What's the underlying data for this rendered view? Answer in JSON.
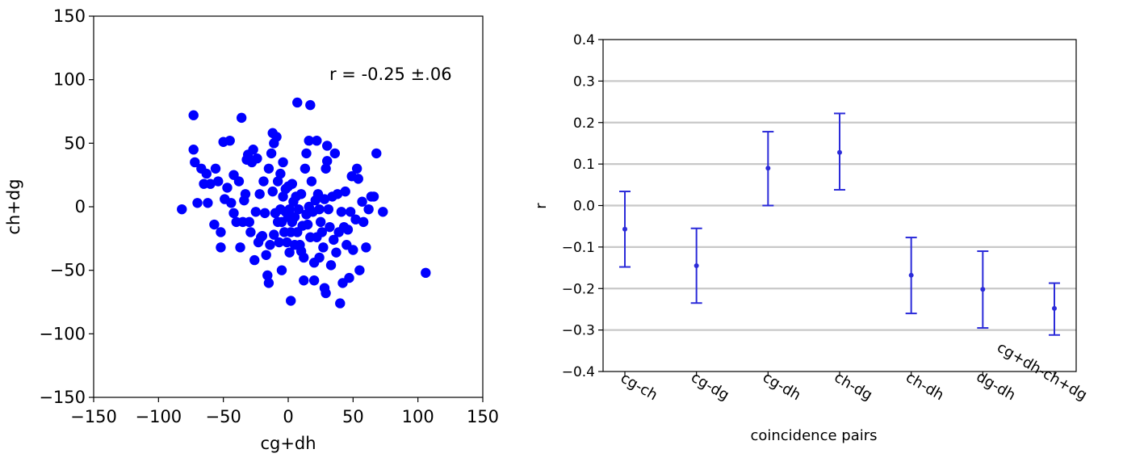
{
  "chart_data": [
    {
      "type": "scatter",
      "xlabel": "cg+dh",
      "ylabel": "ch+dg",
      "xlim": [
        -150,
        150
      ],
      "ylim": [
        -150,
        150
      ],
      "xticks": [
        -150,
        -100,
        -50,
        0,
        50,
        100,
        150
      ],
      "yticks": [
        -150,
        -100,
        -50,
        0,
        50,
        100,
        150
      ],
      "xtick_labels": [
        "−150",
        "−100",
        "−50",
        "0",
        "50",
        "100",
        "150"
      ],
      "ytick_labels": [
        "−150",
        "−100",
        "−50",
        "0",
        "50",
        "100",
        "150"
      ],
      "annotation": "r = -0.25 ±.06",
      "grid": false,
      "color": "#0000ff",
      "points": [
        [
          -82,
          -2
        ],
        [
          -73,
          72
        ],
        [
          -73,
          45
        ],
        [
          -72,
          35
        ],
        [
          -70,
          3
        ],
        [
          -67,
          30
        ],
        [
          -65,
          18
        ],
        [
          -63,
          26
        ],
        [
          -62,
          3
        ],
        [
          -60,
          18
        ],
        [
          -57,
          -14
        ],
        [
          -56,
          30
        ],
        [
          -54,
          20
        ],
        [
          -52,
          -32
        ],
        [
          -52,
          -20
        ],
        [
          -50,
          51
        ],
        [
          -49,
          6
        ],
        [
          -47,
          15
        ],
        [
          -45,
          52
        ],
        [
          -44,
          3
        ],
        [
          -42,
          -5
        ],
        [
          -42,
          25
        ],
        [
          -40,
          -12
        ],
        [
          -38,
          20
        ],
        [
          -37,
          -32
        ],
        [
          -36,
          70
        ],
        [
          -35,
          -12
        ],
        [
          -34,
          5
        ],
        [
          -33,
          10
        ],
        [
          -32,
          37
        ],
        [
          -31,
          41
        ],
        [
          -30,
          -12
        ],
        [
          -29,
          -20
        ],
        [
          -28,
          35
        ],
        [
          -27,
          45
        ],
        [
          -26,
          -42
        ],
        [
          -25,
          -4
        ],
        [
          -24,
          38
        ],
        [
          -23,
          -28
        ],
        [
          -22,
          10
        ],
        [
          -21,
          -24
        ],
        [
          -20,
          -23
        ],
        [
          -19,
          20
        ],
        [
          -18,
          -5
        ],
        [
          -17,
          -38
        ],
        [
          -16,
          -54
        ],
        [
          -15,
          30
        ],
        [
          -15,
          -60
        ],
        [
          -14,
          -30
        ],
        [
          -13,
          42
        ],
        [
          -12,
          58
        ],
        [
          -12,
          12
        ],
        [
          -11,
          50
        ],
        [
          -11,
          -22
        ],
        [
          -10,
          -5
        ],
        [
          -9,
          55
        ],
        [
          -8,
          -12
        ],
        [
          -8,
          20
        ],
        [
          -7,
          -28
        ],
        [
          -6,
          26
        ],
        [
          -6,
          -2
        ],
        [
          -5,
          -12
        ],
        [
          -5,
          -50
        ],
        [
          -4,
          8
        ],
        [
          -4,
          35
        ],
        [
          -3,
          -20
        ],
        [
          -2,
          -4
        ],
        [
          -2,
          14
        ],
        [
          -1,
          -28
        ],
        [
          0,
          -8
        ],
        [
          0,
          16
        ],
        [
          1,
          -2
        ],
        [
          1,
          -36
        ],
        [
          2,
          -20
        ],
        [
          2,
          -74
        ],
        [
          3,
          18
        ],
        [
          3,
          -12
        ],
        [
          4,
          4
        ],
        [
          5,
          -8
        ],
        [
          5,
          -30
        ],
        [
          6,
          8
        ],
        [
          7,
          -20
        ],
        [
          7,
          82
        ],
        [
          8,
          -2
        ],
        [
          9,
          -30
        ],
        [
          10,
          10
        ],
        [
          10,
          -35
        ],
        [
          11,
          -15
        ],
        [
          12,
          -40
        ],
        [
          12,
          -58
        ],
        [
          13,
          30
        ],
        [
          14,
          42
        ],
        [
          14,
          -6
        ],
        [
          15,
          -14
        ],
        [
          16,
          52
        ],
        [
          16,
          0
        ],
        [
          17,
          -24
        ],
        [
          17,
          80
        ],
        [
          18,
          20
        ],
        [
          19,
          -4
        ],
        [
          20,
          -44
        ],
        [
          20,
          -58
        ],
        [
          21,
          5
        ],
        [
          22,
          52
        ],
        [
          22,
          -24
        ],
        [
          23,
          10
        ],
        [
          24,
          -40
        ],
        [
          24,
          -2
        ],
        [
          25,
          -12
        ],
        [
          26,
          -20
        ],
        [
          27,
          -32
        ],
        [
          28,
          6
        ],
        [
          28,
          -64
        ],
        [
          29,
          30
        ],
        [
          29,
          -68
        ],
        [
          30,
          48
        ],
        [
          30,
          36
        ],
        [
          31,
          -2
        ],
        [
          32,
          -16
        ],
        [
          33,
          -46
        ],
        [
          34,
          8
        ],
        [
          35,
          -26
        ],
        [
          36,
          42
        ],
        [
          37,
          -36
        ],
        [
          38,
          10
        ],
        [
          39,
          -20
        ],
        [
          40,
          -76
        ],
        [
          41,
          -4
        ],
        [
          42,
          -60
        ],
        [
          43,
          -16
        ],
        [
          44,
          12
        ],
        [
          45,
          -30
        ],
        [
          46,
          -18
        ],
        [
          47,
          -56
        ],
        [
          48,
          -4
        ],
        [
          49,
          24
        ],
        [
          50,
          -34
        ],
        [
          52,
          -10
        ],
        [
          53,
          30
        ],
        [
          54,
          22
        ],
        [
          55,
          -50
        ],
        [
          57,
          4
        ],
        [
          58,
          -12
        ],
        [
          60,
          -32
        ],
        [
          62,
          -2
        ],
        [
          64,
          8
        ],
        [
          66,
          8
        ],
        [
          68,
          42
        ],
        [
          73,
          -4
        ],
        [
          106,
          -52
        ]
      ]
    },
    {
      "type": "errorbar",
      "xlabel": "coincidence pairs",
      "ylabel": "r",
      "ylim": [
        -0.4,
        0.4
      ],
      "yticks": [
        -0.4,
        -0.3,
        -0.2,
        -0.1,
        0.0,
        0.1,
        0.2,
        0.3,
        0.4
      ],
      "ytick_labels": [
        "−0.4",
        "−0.3",
        "−0.2",
        "−0.1",
        "0.0",
        "0.1",
        "0.2",
        "0.3",
        "0.4"
      ],
      "grid": "horizontal",
      "color": "#2b2bd9",
      "categories": [
        "cg-ch",
        "cg-dg",
        "cg-dh",
        "ch-dg",
        "ch-dh",
        "dg-dh",
        "cg+dh-ch+dg"
      ],
      "values": [
        -0.057,
        -0.145,
        0.09,
        0.128,
        -0.168,
        -0.202,
        -0.248
      ],
      "err_low": [
        -0.148,
        -0.235,
        0.0,
        0.038,
        -0.26,
        -0.295,
        -0.312
      ],
      "err_high": [
        0.034,
        -0.055,
        0.178,
        0.222,
        -0.077,
        -0.11,
        -0.187
      ]
    }
  ]
}
